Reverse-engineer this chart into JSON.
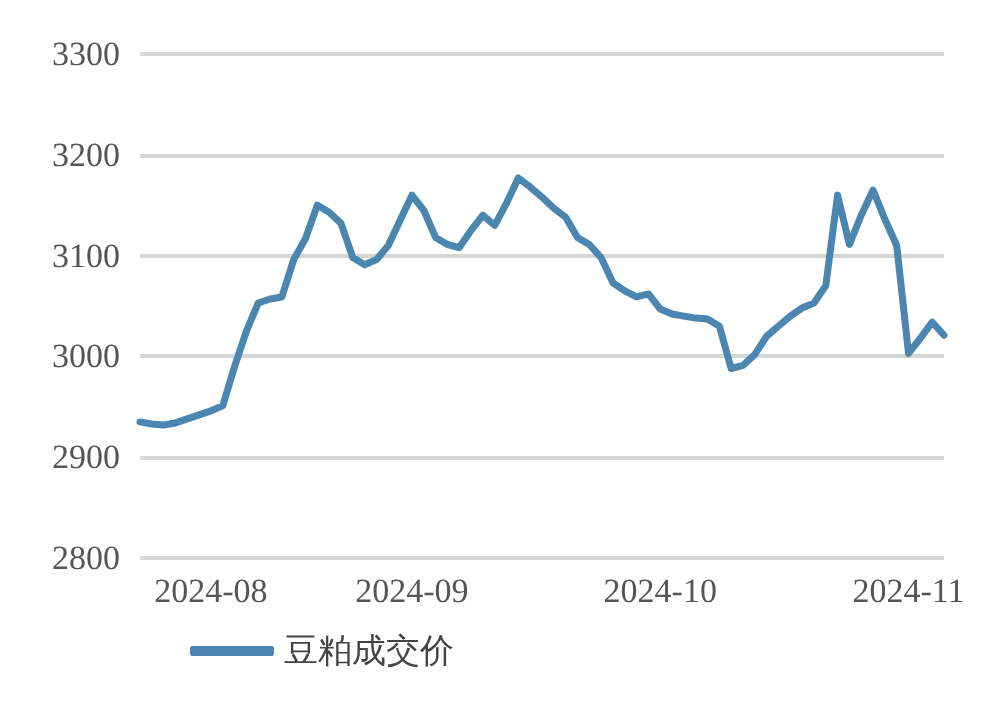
{
  "chart_data": {
    "type": "line",
    "categories": [
      null,
      null,
      null,
      null,
      null,
      null,
      "2024-08",
      null,
      null,
      null,
      null,
      null,
      null,
      null,
      null,
      null,
      null,
      null,
      null,
      null,
      null,
      null,
      null,
      "2024-09",
      null,
      null,
      null,
      null,
      null,
      null,
      null,
      null,
      null,
      null,
      null,
      null,
      null,
      null,
      null,
      null,
      null,
      null,
      null,
      null,
      "2024-10",
      null,
      null,
      null,
      null,
      null,
      null,
      null,
      null,
      null,
      null,
      null,
      null,
      null,
      null,
      null,
      null,
      null,
      null,
      null,
      null,
      "2024-11",
      null,
      null,
      null
    ],
    "series": [
      {
        "name": "豆粕成交价",
        "color": "#4a86b0",
        "values": [
          2935,
          2933,
          2932,
          2934,
          2938,
          2942,
          2946,
          2951,
          2990,
          3025,
          3053,
          3057,
          3059,
          3096,
          3117,
          3150,
          3143,
          3132,
          3098,
          3091,
          3096,
          3110,
          3135,
          3160,
          3145,
          3118,
          3111,
          3108,
          3125,
          3140,
          3130,
          3152,
          3177,
          3168,
          3158,
          3147,
          3138,
          3118,
          3111,
          3098,
          3073,
          3065,
          3059,
          3062,
          3047,
          3042,
          3040,
          3038,
          3037,
          3030,
          2988,
          2991,
          3002,
          3020,
          3030,
          3040,
          3048,
          3053,
          3070,
          3160,
          3111,
          3140,
          3165,
          3136,
          3110,
          3003,
          3018,
          3034,
          3021
        ]
      }
    ],
    "ylim": [
      2800,
      3300
    ],
    "yticks": [
      2800,
      2900,
      3000,
      3100,
      3200,
      3300
    ],
    "grid": "y",
    "legend": "bottom",
    "marker": "none",
    "line_style": "solid"
  }
}
